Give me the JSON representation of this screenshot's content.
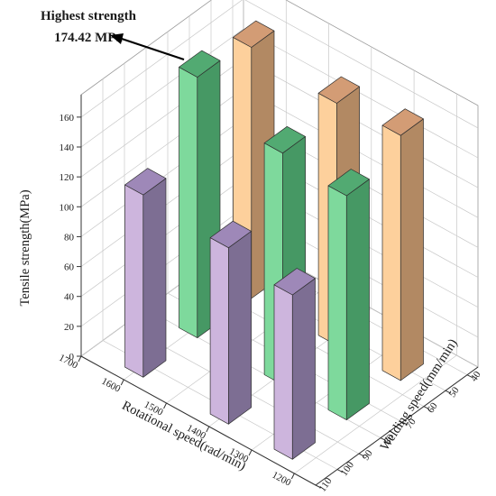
{
  "chart_data": {
    "type": "bar3d",
    "annotation": {
      "line1": "Highest strength",
      "line2": "174.42 MPa"
    },
    "zlabel": "Tensile strength(MPa)",
    "xlabel": "Rotational speed(rad/min)",
    "ylabel": "Welding speed(mm/min)",
    "z_ticks": [
      "0",
      "20",
      "40",
      "60",
      "80",
      "100",
      "120",
      "140",
      "160"
    ],
    "x_ticks": [
      "1700",
      "1600",
      "1500",
      "1400",
      "1300",
      "1200"
    ],
    "y_ticks": [
      "40",
      "50",
      "60",
      "70",
      "80",
      "90",
      "100",
      "110"
    ],
    "zlim": [
      0,
      175
    ],
    "series": [
      {
        "colors": {
          "front": "#cdb5dd",
          "side": "#7d6e93",
          "top": "#9e88b8"
        },
        "bars": [
          {
            "x": 1600,
            "y": 100,
            "z": 122
          },
          {
            "x": 1400,
            "y": 100,
            "z": 118
          },
          {
            "x": 1250,
            "y": 100,
            "z": 110
          }
        ]
      },
      {
        "colors": {
          "front": "#7ed99c",
          "side": "#469864",
          "top": "#52aa72"
        },
        "bars": [
          {
            "x": 1600,
            "y": 75,
            "z": 174.42
          },
          {
            "x": 1400,
            "y": 75,
            "z": 155
          },
          {
            "x": 1250,
            "y": 75,
            "z": 150
          }
        ]
      },
      {
        "colors": {
          "front": "#fdd09c",
          "side": "#b28963",
          "top": "#d39c75"
        },
        "bars": [
          {
            "x": 1600,
            "y": 50,
            "z": 168
          },
          {
            "x": 1400,
            "y": 50,
            "z": 162
          },
          {
            "x": 1250,
            "y": 50,
            "z": 164
          }
        ]
      }
    ]
  }
}
